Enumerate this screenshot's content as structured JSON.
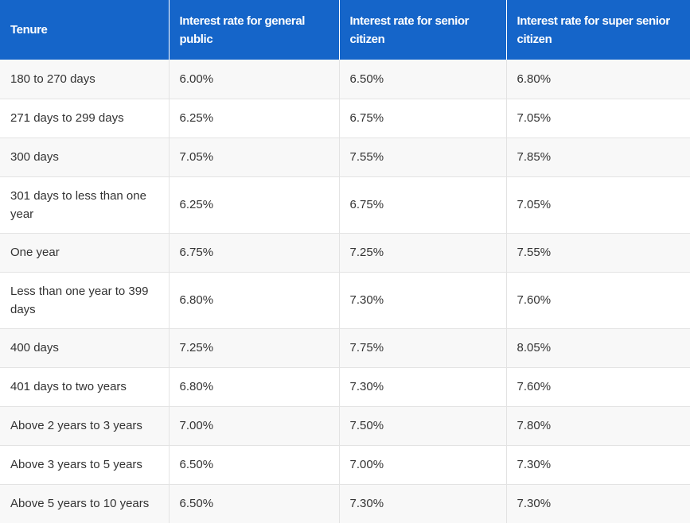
{
  "table": {
    "headers": [
      "Tenure",
      "Interest rate for general public",
      "Interest rate for senior citizen",
      "Interest rate for super senior citizen"
    ],
    "rows": [
      [
        "180 to 270 days",
        "6.00%",
        "6.50%",
        "6.80%"
      ],
      [
        "271 days to 299 days",
        "6.25%",
        "6.75%",
        "7.05%"
      ],
      [
        "300 days",
        "7.05%",
        "7.55%",
        "7.85%"
      ],
      [
        "301 days to less than one year",
        "6.25%",
        "6.75%",
        "7.05%"
      ],
      [
        "One year",
        "6.75%",
        "7.25%",
        "7.55%"
      ],
      [
        "Less than one year to 399 days",
        "6.80%",
        "7.30%",
        "7.60%"
      ],
      [
        "400 days",
        "7.25%",
        "7.75%",
        "8.05%"
      ],
      [
        "401 days to two years",
        "6.80%",
        "7.30%",
        "7.60%"
      ],
      [
        "Above 2 years to 3 years",
        "7.00%",
        "7.50%",
        "7.80%"
      ],
      [
        "Above 3 years to 5 years",
        "6.50%",
        "7.00%",
        "7.30%"
      ],
      [
        "Above 5 years to 10 years",
        "6.50%",
        "7.30%",
        "7.30%"
      ]
    ]
  },
  "colors": {
    "header_background": "#1565c9",
    "header_text": "#ffffff",
    "stripe_row": "#f8f8f8",
    "body_text": "#333333",
    "grid_line": "#e3e3e3"
  }
}
